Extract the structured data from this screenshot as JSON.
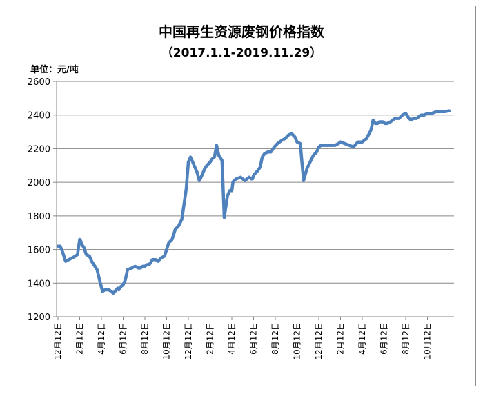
{
  "chart_data": {
    "type": "line",
    "title": "中国再生资源废钢价格指数",
    "subtitle": "（2017.1.1-2019.11.29）",
    "ylabel": "单位：元/吨",
    "xlabel": "",
    "ylim": [
      1200,
      2600
    ],
    "yticks": [
      "1200",
      "1400",
      "1600",
      "1800",
      "2000",
      "2200",
      "2400",
      "2600"
    ],
    "xticks": [
      "12月12日",
      "2月12日",
      "4月12日",
      "6月12日",
      "8月12日",
      "10月12日",
      "12月12日",
      "2月12日",
      "4月12日",
      "6月12日",
      "8月12日",
      "10月12日",
      "12月12日",
      "2月12日",
      "4月12日",
      "6月12日",
      "8月12日",
      "10月12日"
    ],
    "grid": "horizontal",
    "series_color": "#4f81bd",
    "series": [
      {
        "x": [
          0.0,
          0.1,
          0.2,
          0.35,
          0.5,
          0.65,
          0.8,
          0.9,
          1.0,
          1.05,
          1.1,
          1.2,
          1.3,
          1.45,
          1.55,
          1.65,
          1.8,
          1.95,
          2.05,
          2.15,
          2.35,
          2.55,
          2.75,
          2.8,
          2.9,
          3.0,
          3.1,
          3.2,
          3.4,
          3.55,
          3.7,
          3.8,
          3.9,
          4.0,
          4.1,
          4.2,
          4.35,
          4.5,
          4.6,
          4.75,
          4.9,
          5.1,
          5.25,
          5.4,
          5.55,
          5.7,
          5.9,
          6.0,
          6.1,
          6.2,
          6.3,
          6.4,
          6.5,
          6.55,
          6.65,
          6.75,
          6.85,
          7.0,
          7.1,
          7.2,
          7.3,
          7.4,
          7.55,
          7.65,
          7.8,
          7.9,
          8.0,
          8.05,
          8.1,
          8.2,
          8.4,
          8.6,
          8.8,
          8.9,
          8.95,
          9.0,
          9.05,
          9.2,
          9.3,
          9.4,
          9.5,
          9.65,
          9.8,
          9.95,
          10.1,
          10.2,
          10.3,
          10.45,
          10.6,
          10.75,
          10.9,
          11.0,
          11.15,
          11.3,
          11.45,
          11.6,
          11.75,
          11.9,
          12.0,
          12.1,
          12.2,
          12.25,
          12.35,
          12.45,
          12.6,
          12.75,
          12.9,
          13.0,
          13.2,
          13.4,
          13.6,
          13.8,
          14.0,
          14.2,
          14.4,
          14.5,
          14.6,
          14.7,
          14.8,
          14.95,
          15.05,
          15.15,
          15.3,
          15.5,
          15.7,
          15.85,
          16.0,
          16.15,
          16.25,
          16.35,
          16.5,
          16.6,
          16.7,
          16.85,
          17.0,
          17.2,
          17.4,
          17.6,
          17.8,
          18.0
        ],
        "values": [
          1620,
          1620,
          1590,
          1530,
          1540,
          1550,
          1560,
          1570,
          1660,
          1650,
          1630,
          1610,
          1570,
          1560,
          1530,
          1510,
          1480,
          1400,
          1350,
          1360,
          1360,
          1340,
          1370,
          1360,
          1380,
          1390,
          1420,
          1480,
          1490,
          1500,
          1490,
          1490,
          1500,
          1500,
          1510,
          1510,
          1540,
          1540,
          1530,
          1550,
          1560,
          1640,
          1660,
          1720,
          1740,
          1780,
          1960,
          2120,
          2150,
          2120,
          2090,
          2060,
          2010,
          2020,
          2050,
          2080,
          2100,
          2120,
          2140,
          2150,
          2220,
          2160,
          2130,
          1790,
          1920,
          1950,
          1950,
          2000,
          2010,
          2020,
          2030,
          2010,
          2030,
          2020,
          2020,
          2040,
          2050,
          2070,
          2090,
          2150,
          2170,
          2180,
          2180,
          2210,
          2230,
          2240,
          2250,
          2260,
          2280,
          2290,
          2270,
          2240,
          2230,
          2010,
          2080,
          2120,
          2160,
          2180,
          2210,
          2220,
          2220,
          2220,
          2220,
          2220,
          2220,
          2220,
          2230,
          2240,
          2230,
          2220,
          2210,
          2240,
          2240,
          2260,
          2310,
          2370,
          2350,
          2350,
          2360,
          2360,
          2350,
          2350,
          2360,
          2380,
          2380,
          2400,
          2410,
          2380,
          2370,
          2380,
          2380,
          2390,
          2400,
          2400,
          2410,
          2410,
          2420,
          2420,
          2420,
          2425
        ]
      }
    ]
  }
}
